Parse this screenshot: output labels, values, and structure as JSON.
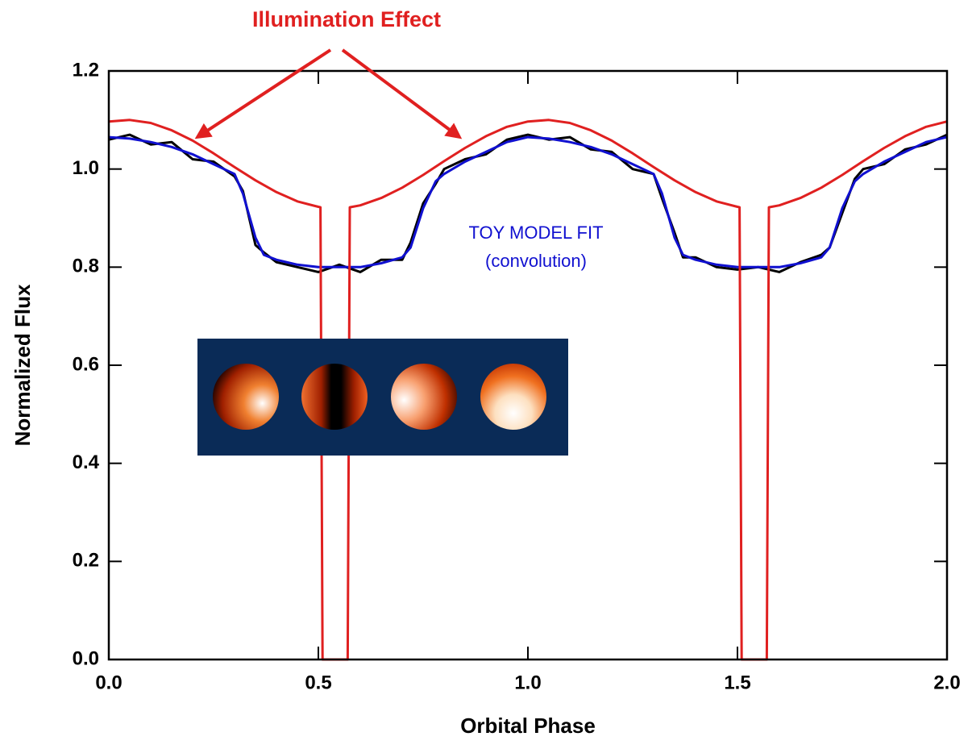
{
  "chart_data": {
    "type": "line",
    "xlabel": "Orbital Phase",
    "ylabel": "Normalized Flux",
    "xlim": [
      0,
      2
    ],
    "ylim": [
      0,
      1.2
    ],
    "xticks": [
      {
        "value": 0,
        "label": "0.0"
      },
      0.5,
      {
        "value": 1,
        "label": "1.0"
      },
      1.5,
      {
        "value": 2,
        "label": "2.0"
      }
    ],
    "yticks": [
      {
        "value": 0,
        "label": "0.0"
      },
      0.2,
      0.4,
      0.6,
      0.8,
      {
        "value": 1,
        "label": "1.0"
      },
      1.2
    ],
    "annotations": [
      "Illumination Effect",
      "TOY MODEL FIT",
      "(convolution)"
    ],
    "series": [
      {
        "color": "#000000",
        "x": [
          0,
          0.05,
          0.1,
          0.15,
          0.2,
          0.25,
          0.3,
          0.32,
          0.35,
          0.37,
          0.4,
          0.45,
          0.5,
          0.55,
          0.6,
          0.65,
          0.7,
          0.72,
          0.75,
          0.78,
          0.8,
          0.85,
          0.9,
          0.95,
          1,
          1.05,
          1.1,
          1.15,
          1.2,
          1.25,
          1.3,
          1.32,
          1.35,
          1.37,
          1.4,
          1.45,
          1.5,
          1.55,
          1.6,
          1.65,
          1.7,
          1.72,
          1.75,
          1.78,
          1.8,
          1.85,
          1.9,
          1.95,
          2
        ],
        "values": [
          1.06,
          1.07,
          1.05,
          1.055,
          1.02,
          1.015,
          0.985,
          0.955,
          0.845,
          0.83,
          0.81,
          0.8,
          0.79,
          0.805,
          0.79,
          0.815,
          0.815,
          0.85,
          0.93,
          0.97,
          1.0,
          1.02,
          1.03,
          1.06,
          1.07,
          1.06,
          1.065,
          1.04,
          1.035,
          1.0,
          0.99,
          0.94,
          0.87,
          0.82,
          0.82,
          0.8,
          0.795,
          0.8,
          0.79,
          0.81,
          0.825,
          0.84,
          0.91,
          0.98,
          1.0,
          1.01,
          1.04,
          1.05,
          1.07
        ]
      },
      {
        "color": "#1010d0",
        "x": [
          0,
          0.05,
          0.1,
          0.15,
          0.2,
          0.25,
          0.3,
          0.32,
          0.35,
          0.37,
          0.4,
          0.45,
          0.5,
          0.55,
          0.6,
          0.65,
          0.7,
          0.72,
          0.75,
          0.78,
          0.8,
          0.85,
          0.9,
          0.95,
          1,
          1.05,
          1.1,
          1.15,
          1.2,
          1.25,
          1.3,
          1.32,
          1.35,
          1.37,
          1.4,
          1.45,
          1.5,
          1.55,
          1.6,
          1.65,
          1.7,
          1.72,
          1.75,
          1.78,
          1.8,
          1.85,
          1.9,
          1.95,
          2
        ],
        "values": [
          1.065,
          1.062,
          1.055,
          1.045,
          1.03,
          1.01,
          0.99,
          0.95,
          0.86,
          0.825,
          0.815,
          0.805,
          0.8,
          0.8,
          0.8,
          0.808,
          0.82,
          0.84,
          0.92,
          0.975,
          0.99,
          1.015,
          1.035,
          1.055,
          1.065,
          1.062,
          1.055,
          1.045,
          1.03,
          1.01,
          0.99,
          0.95,
          0.86,
          0.825,
          0.815,
          0.805,
          0.8,
          0.8,
          0.8,
          0.808,
          0.82,
          0.84,
          0.92,
          0.975,
          0.99,
          1.015,
          1.035,
          1.055,
          1.065
        ]
      },
      {
        "color": "#e02020",
        "x": [
          0,
          0.05,
          0.1,
          0.15,
          0.2,
          0.25,
          0.3,
          0.35,
          0.4,
          0.45,
          0.5,
          0.505,
          0.51,
          0.57,
          0.575,
          0.6,
          0.65,
          0.7,
          0.75,
          0.8,
          0.85,
          0.9,
          0.95,
          1,
          1.05,
          1.1,
          1.15,
          1.2,
          1.25,
          1.3,
          1.35,
          1.4,
          1.45,
          1.5,
          1.505,
          1.51,
          1.57,
          1.575,
          1.6,
          1.65,
          1.7,
          1.75,
          1.8,
          1.85,
          1.9,
          1.95,
          2
        ],
        "values": [
          1.097,
          1.1,
          1.094,
          1.079,
          1.058,
          1.032,
          1.004,
          0.977,
          0.953,
          0.934,
          0.923,
          0.922,
          0,
          0,
          0.922,
          0.926,
          0.941,
          0.962,
          0.988,
          1.016,
          1.043,
          1.067,
          1.086,
          1.097,
          1.1,
          1.094,
          1.079,
          1.058,
          1.032,
          1.004,
          0.977,
          0.953,
          0.934,
          0.923,
          0.922,
          0,
          0,
          0.922,
          0.926,
          0.941,
          0.962,
          0.988,
          1.016,
          1.043,
          1.067,
          1.086,
          1.097
        ]
      }
    ]
  }
}
